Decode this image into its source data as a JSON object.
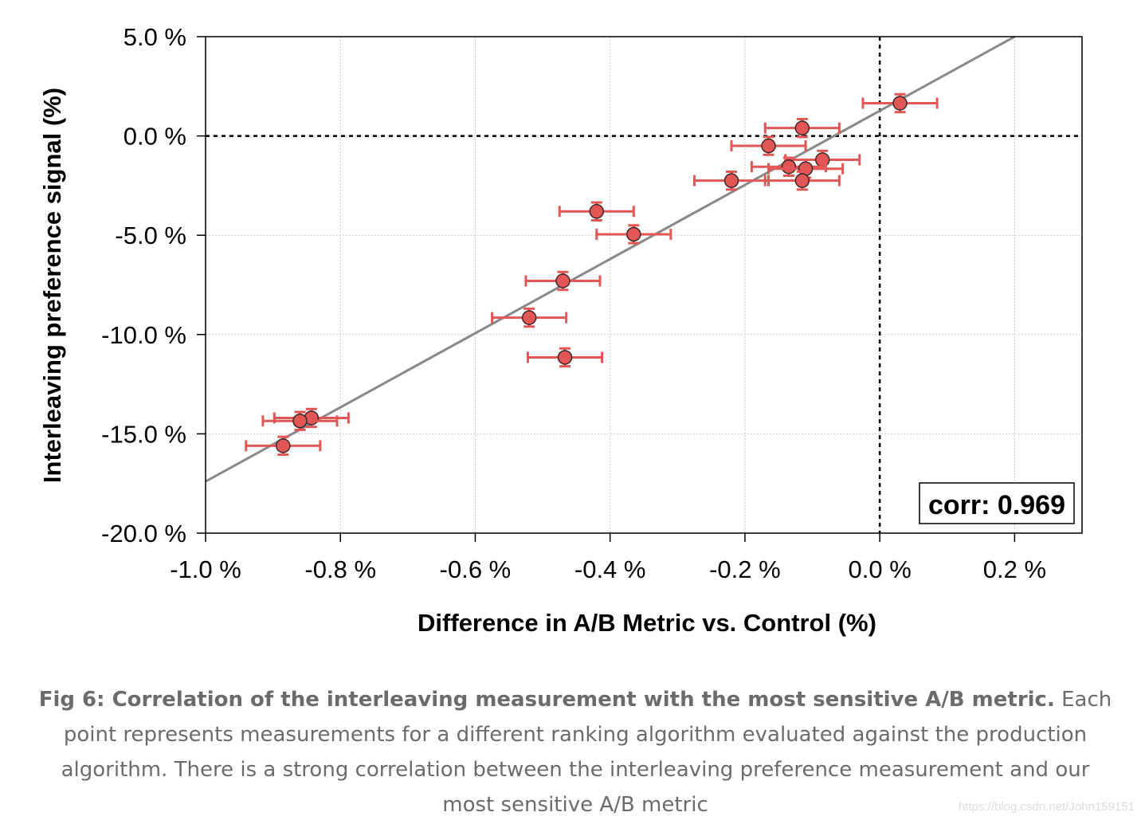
{
  "chart_data": {
    "type": "scatter",
    "xlabel": "Difference in A/B Metric vs. Control (%)",
    "ylabel": "Interleaving preference signal (%)",
    "xlim": [
      -1.0,
      0.3
    ],
    "ylim": [
      -20.0,
      5.0
    ],
    "x_ticks": [
      -1.0,
      -0.8,
      -0.6,
      -0.4,
      -0.2,
      0.0,
      0.2
    ],
    "x_tick_labels": [
      "-1.0 %",
      "-0.8 %",
      "-0.6 %",
      "-0.4 %",
      "-0.2 %",
      "0.0 %",
      "0.2 %"
    ],
    "y_ticks": [
      5.0,
      0.0,
      -5.0,
      -10.0,
      -15.0,
      -20.0
    ],
    "y_tick_labels": [
      "5.0 %",
      "0.0 %",
      "-5.0 %",
      "-10.0 %",
      "-15.0 %",
      "-20.0 %"
    ],
    "grid": true,
    "reference_lines": {
      "x": 0.0,
      "y": 0.0,
      "style": "dotted"
    },
    "fit_line": {
      "x0": -1.0,
      "y0": -17.4,
      "x1": 0.2,
      "y1": 5.0,
      "color": "#888888"
    },
    "annotation": "corr: 0.969",
    "annotation_position": "bottom-right",
    "point_color": "#e35656",
    "points": [
      {
        "x": 0.03,
        "y": 1.65,
        "xerr": 0.055,
        "yerr": 0.45
      },
      {
        "x": -0.115,
        "y": 0.4,
        "xerr": 0.055,
        "yerr": 0.45
      },
      {
        "x": -0.165,
        "y": -0.5,
        "xerr": 0.055,
        "yerr": 0.45
      },
      {
        "x": -0.085,
        "y": -1.2,
        "xerr": 0.055,
        "yerr": 0.45
      },
      {
        "x": -0.135,
        "y": -1.55,
        "xerr": 0.055,
        "yerr": 0.45
      },
      {
        "x": -0.11,
        "y": -1.65,
        "xerr": 0.055,
        "yerr": 0.45
      },
      {
        "x": -0.115,
        "y": -2.25,
        "xerr": 0.055,
        "yerr": 0.45
      },
      {
        "x": -0.22,
        "y": -2.25,
        "xerr": 0.055,
        "yerr": 0.45
      },
      {
        "x": -0.42,
        "y": -3.8,
        "xerr": 0.055,
        "yerr": 0.45
      },
      {
        "x": -0.365,
        "y": -4.95,
        "xerr": 0.055,
        "yerr": 0.45
      },
      {
        "x": -0.47,
        "y": -7.3,
        "xerr": 0.055,
        "yerr": 0.45
      },
      {
        "x": -0.52,
        "y": -9.15,
        "xerr": 0.055,
        "yerr": 0.45
      },
      {
        "x": -0.467,
        "y": -11.15,
        "xerr": 0.055,
        "yerr": 0.45
      },
      {
        "x": -0.843,
        "y": -14.2,
        "xerr": 0.055,
        "yerr": 0.45
      },
      {
        "x": -0.86,
        "y": -14.35,
        "xerr": 0.055,
        "yerr": 0.45
      },
      {
        "x": -0.885,
        "y": -15.6,
        "xerr": 0.055,
        "yerr": 0.45
      }
    ]
  },
  "caption": {
    "bold": "Fig 6: Correlation of the interleaving measurement with the most sensitive A/B metric.",
    "text": " Each point represents measurements for a different ranking algorithm evaluated against the production algorithm. There is a strong correlation between the interleaving preference measurement and our most sensitive A/B metric"
  },
  "watermark": "https://blog.csdn.net/John159151"
}
